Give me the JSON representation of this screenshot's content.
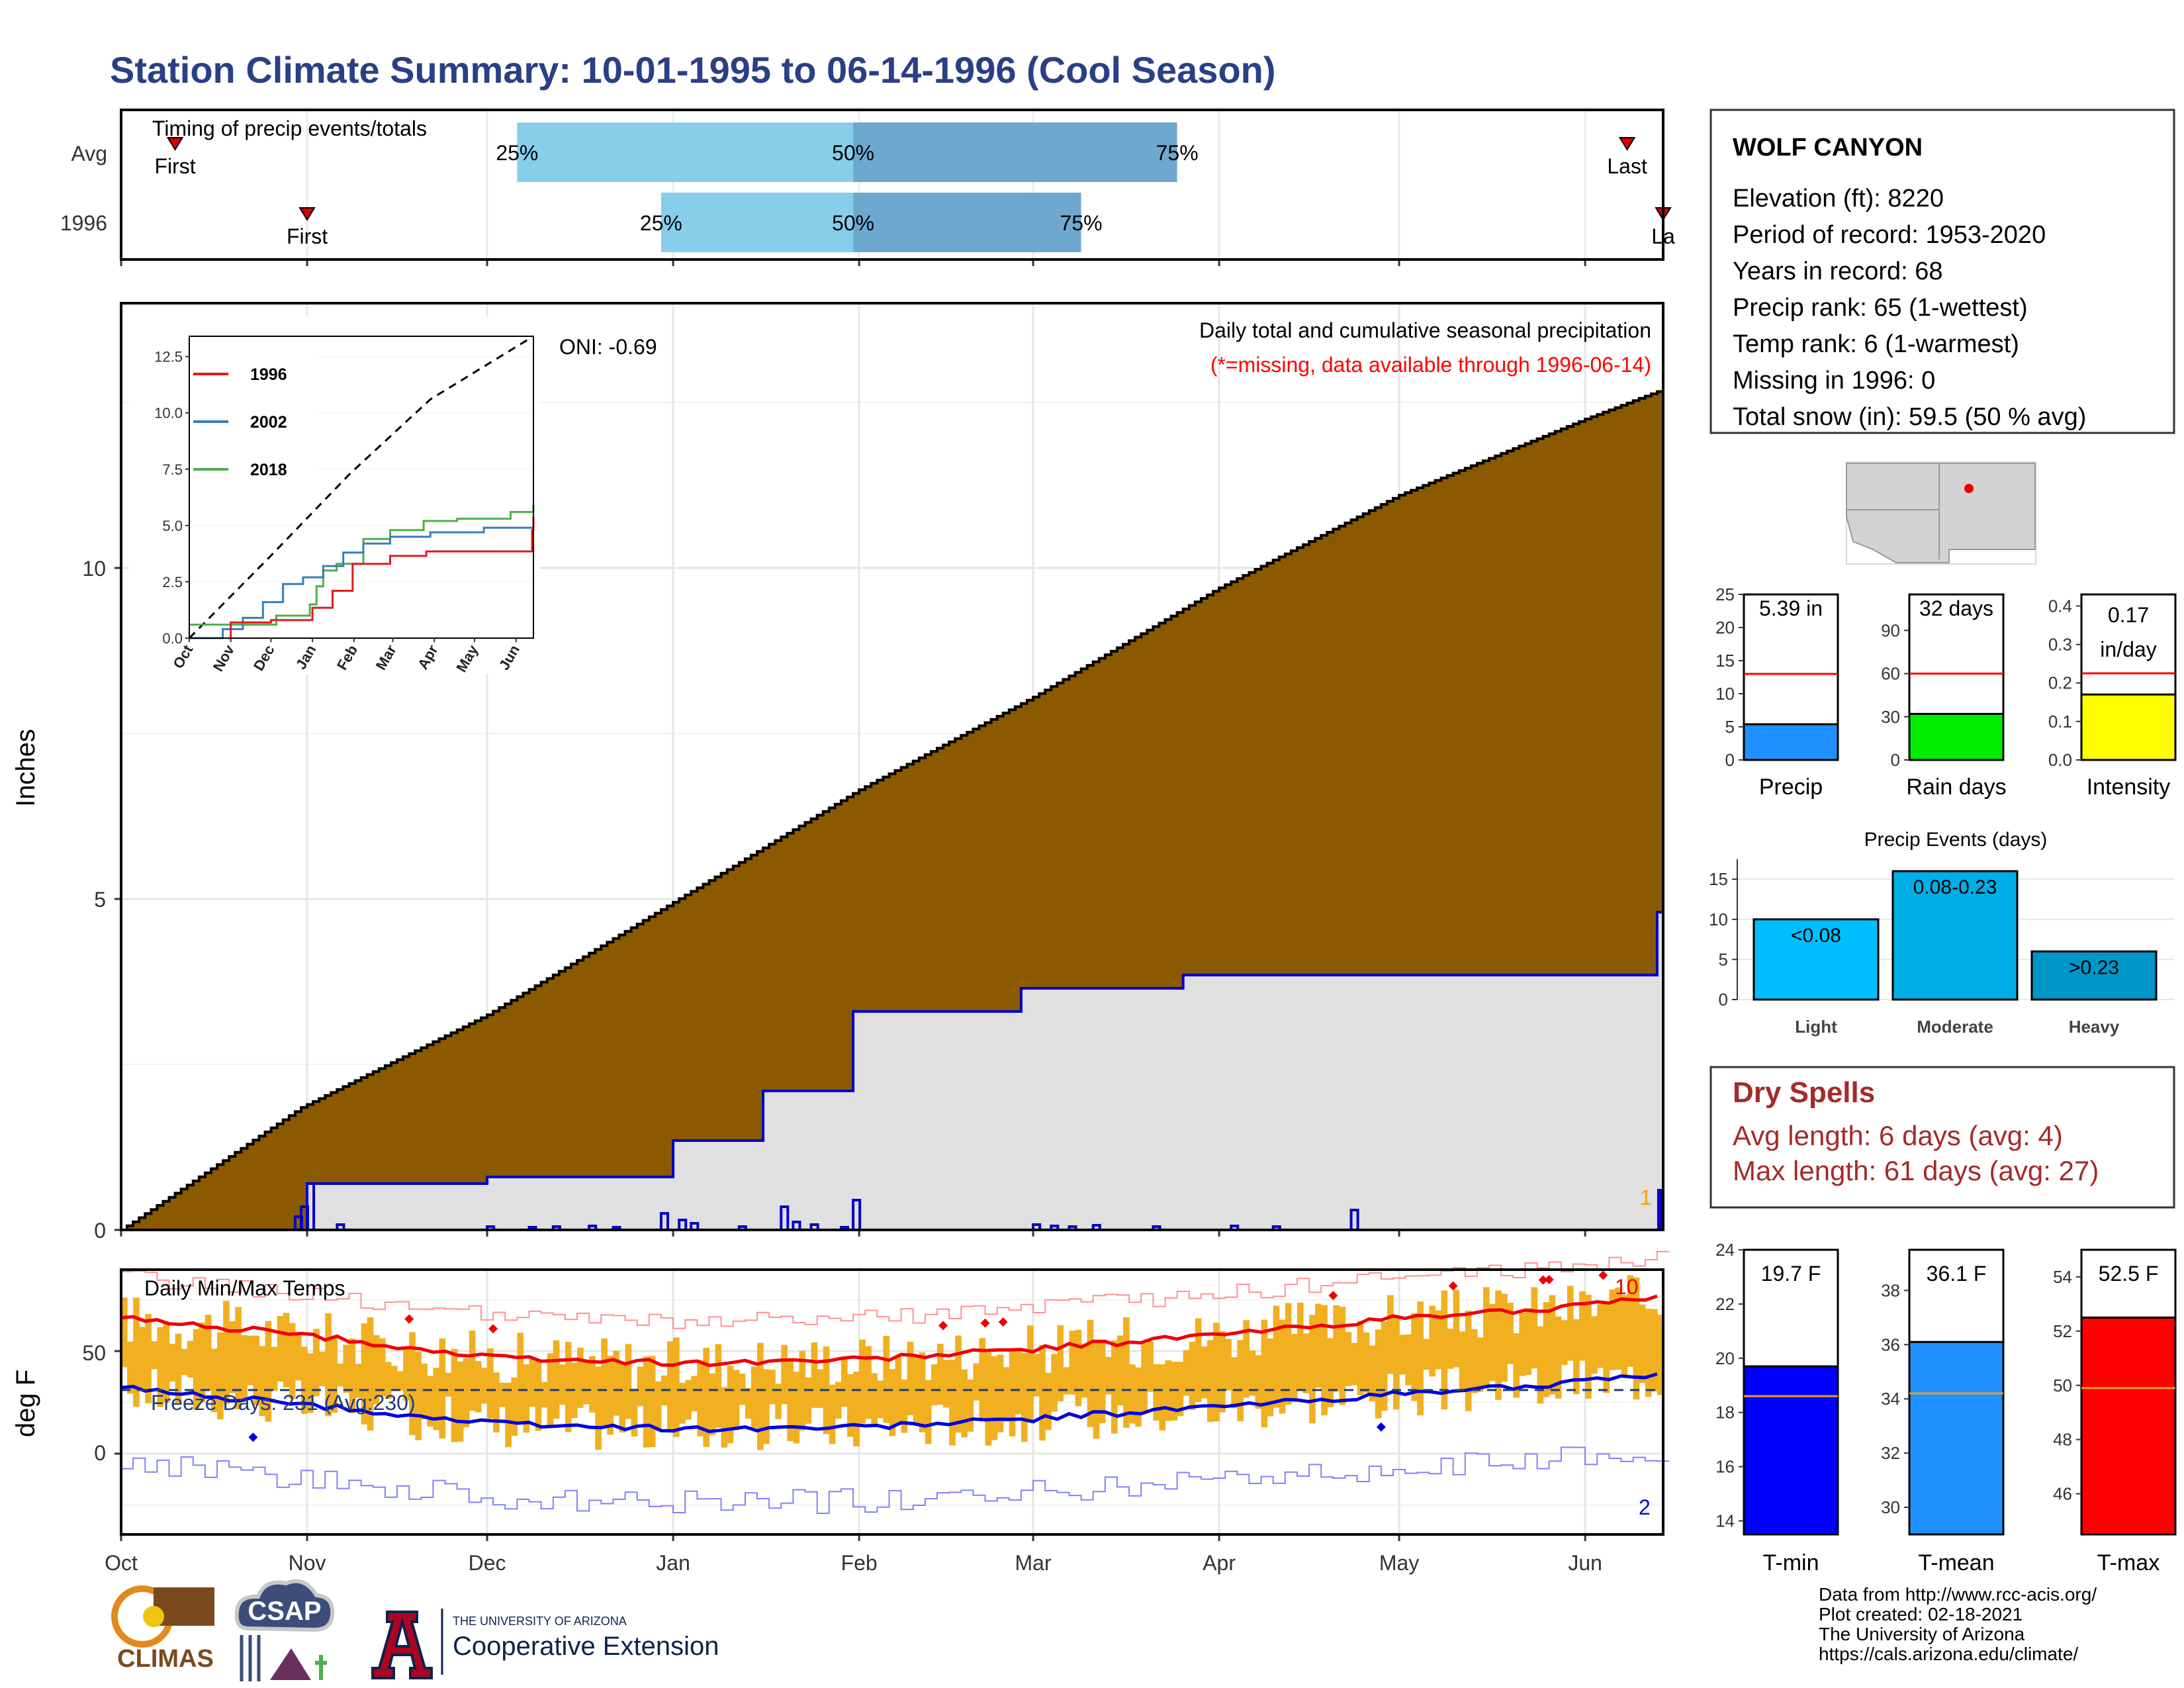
{
  "title": "Station Climate Summary: 10-01-1995 to 06-14-1996 (Cool Season)",
  "colors": {
    "title": "#2a3f85",
    "cumulative_fill": "#8b5a00",
    "station_fill": "#e0e0e0",
    "station_line": "#0000cc",
    "bar_light": "#87ceeb",
    "bar_dark": "#6fa8cf",
    "dry_spell": "#a52a2a",
    "temp_bar": "#f0b020",
    "tmax_line": "#ee0000",
    "tmin_line": "#0000dd"
  },
  "timing": {
    "label": "Timing of precip events/totals",
    "rows": [
      {
        "name": "Avg",
        "first_day": 9,
        "last_day": 251,
        "q25": 66,
        "q50": 122,
        "q75": 176,
        "first_label": "First",
        "last_label": "Last"
      },
      {
        "name": "1996",
        "first_day": 31,
        "last_day": 257,
        "q25": 90,
        "q50": 122,
        "q75": 160,
        "first_label": "First",
        "last_label": "La"
      }
    ],
    "pct_labels": [
      "25%",
      "50%",
      "75%"
    ]
  },
  "main": {
    "ylabel": "Inches",
    "yticks": [
      "0",
      "5",
      "10"
    ],
    "months": [
      "Oct",
      "Nov",
      "Dec",
      "Jan",
      "Feb",
      "Mar",
      "Apr",
      "May",
      "Jun"
    ],
    "annotation_title": "Daily total and cumulative seasonal precipitation",
    "annotation_missing": "(*=missing, data available through 1996-06-14)",
    "oni": "ONI: -0.69",
    "edge_label": "1"
  },
  "inset": {
    "yticks": [
      "0.0",
      "2.5",
      "5.0",
      "7.5",
      "10.0",
      "12.5"
    ],
    "months": [
      "Oct",
      "Nov",
      "Dec",
      "Jan",
      "Feb",
      "Mar",
      "Apr",
      "May",
      "Jun"
    ],
    "legend": [
      {
        "name": "1996",
        "color": "#e41a1c"
      },
      {
        "name": "2002",
        "color": "#377eb8"
      },
      {
        "name": "2018",
        "color": "#4daf4a"
      }
    ]
  },
  "temps": {
    "label": "Daily Min/Max Temps",
    "ylabel": "deg F",
    "yticks": [
      "0",
      "50"
    ],
    "freeze": "Freeze Days: 231 (Avg:230)",
    "freeze_line": 31,
    "count_max": "10",
    "count_min": "2"
  },
  "station": {
    "name": "WOLF CANYON",
    "lines": [
      "Elevation (ft): 8220",
      "Period of record: 1953-2020",
      "Years in record: 68",
      "Precip rank: 65 (1-wettest)",
      "Temp rank: 6 (1-warmest)",
      "Missing in 1996: 0",
      "Total snow (in): 59.5 (50 % avg)"
    ]
  },
  "mini_bars": [
    {
      "label": "Precip",
      "value_text": "5.39 in",
      "value": 5.39,
      "avg": 13,
      "max": 25,
      "ticks": [
        "0",
        "5",
        "10",
        "15",
        "20",
        "25"
      ],
      "tick_values": [
        0,
        5,
        10,
        15,
        20,
        25
      ],
      "color": "#1e90ff"
    },
    {
      "label": "Rain days",
      "value_text": "32 days",
      "value": 32,
      "avg": 60,
      "max": 115,
      "ticks": [
        "0",
        "30",
        "60",
        "90"
      ],
      "tick_values": [
        0,
        30,
        60,
        90
      ],
      "color": "#00ee00"
    },
    {
      "label": "Intensity",
      "value_text": "0.17",
      "value_text2": "in/day",
      "value": 0.17,
      "avg": 0.225,
      "max": 0.43,
      "ticks": [
        "0.0",
        "0.1",
        "0.2",
        "0.3",
        "0.4"
      ],
      "tick_values": [
        0,
        0.1,
        0.2,
        0.3,
        0.4
      ],
      "color": "#ffff00"
    }
  ],
  "events": {
    "title": "Precip Events (days)",
    "ticks": [
      "0",
      "5",
      "10",
      "15"
    ],
    "bars": [
      {
        "name": "Light",
        "label": "<0.08",
        "value": 10,
        "color": "#00bfff"
      },
      {
        "name": "Moderate",
        "label": "0.08-0.23",
        "value": 16,
        "color": "#00aee6"
      },
      {
        "name": "Heavy",
        "label": ">0.23",
        "value": 6,
        "color": "#0096c8"
      }
    ]
  },
  "dry": {
    "title": "Dry Spells",
    "avg": "Avg length: 6 days (avg: 4)",
    "max": "Max length: 61 days (avg: 27)"
  },
  "temp_bars": [
    {
      "label": "T-min",
      "value_text": "19.7 F",
      "value": 19.7,
      "avg": 18.6,
      "min": 13.5,
      "max": 24,
      "ticks": [
        "14",
        "16",
        "18",
        "20",
        "22",
        "24"
      ],
      "tick_values": [
        14,
        16,
        18,
        20,
        22,
        24
      ],
      "color": "#0000ff"
    },
    {
      "label": "T-mean",
      "value_text": "36.1 F",
      "value": 36.1,
      "avg": 34.2,
      "min": 29,
      "max": 39.5,
      "ticks": [
        "30",
        "32",
        "34",
        "36",
        "38"
      ],
      "tick_values": [
        30,
        32,
        34,
        36,
        38
      ],
      "color": "#1e90ff"
    },
    {
      "label": "T-max",
      "value_text": "52.5 F",
      "value": 52.5,
      "avg": 49.9,
      "min": 44.5,
      "max": 55,
      "ticks": [
        "46",
        "48",
        "50",
        "52",
        "54"
      ],
      "tick_values": [
        46,
        48,
        50,
        52,
        54
      ],
      "color": "#ff0000"
    }
  ],
  "footer": {
    "lines": [
      "Data from http://www.rcc-acis.org/",
      "Plot created: 02-18-2021",
      "The University of Arizona",
      "https://cals.arizona.edu/climate/"
    ],
    "climas": "CLIMAS",
    "csap": "CSAP",
    "ua_small": "THE UNIVERSITY OF ARIZONA",
    "ua_big": "Cooperative Extension"
  },
  "chart_data": [
    {
      "type": "area",
      "title": "Daily total and cumulative seasonal precipitation",
      "ylabel": "Inches",
      "x_range": [
        "1995-10-01",
        "1996-06-14"
      ],
      "ylim": [
        0,
        13.5
      ],
      "series": [
        {
          "name": "Average cumulative",
          "x_day": [
            0,
            30,
            61,
            92,
            123,
            152,
            183,
            213,
            244,
            257
          ],
          "values": [
            0,
            1.85,
            3.25,
            4.95,
            6.65,
            8.05,
            9.7,
            11.1,
            12.25,
            12.7
          ]
        },
        {
          "name": "1996 cumulative",
          "x_day": [
            0,
            29,
            31,
            61,
            92,
            107,
            122,
            128,
            150,
            177,
            256,
            257
          ],
          "values": [
            0,
            0,
            0.7,
            0.8,
            1.35,
            2.1,
            3.3,
            3.3,
            3.65,
            3.85,
            4.8,
            5.39
          ]
        }
      ]
    },
    {
      "type": "line",
      "title": "Daily Min/Max Temps",
      "ylabel": "deg F",
      "x_range": [
        "1995-10-01",
        "1996-06-14"
      ],
      "ylim": [
        -33,
        95
      ],
      "series": [
        {
          "name": "Avg max",
          "x_day": [
            0,
            30,
            61,
            92,
            123,
            152,
            183,
            213,
            244,
            257
          ],
          "values": [
            66,
            58,
            47,
            44,
            46,
            51,
            58,
            66,
            72,
            76
          ]
        },
        {
          "name": "Avg min",
          "x_day": [
            0,
            30,
            61,
            92,
            123,
            152,
            183,
            213,
            244,
            257
          ],
          "values": [
            32,
            24,
            15,
            12,
            13,
            17,
            23,
            29,
            35,
            38
          ]
        }
      ]
    }
  ]
}
